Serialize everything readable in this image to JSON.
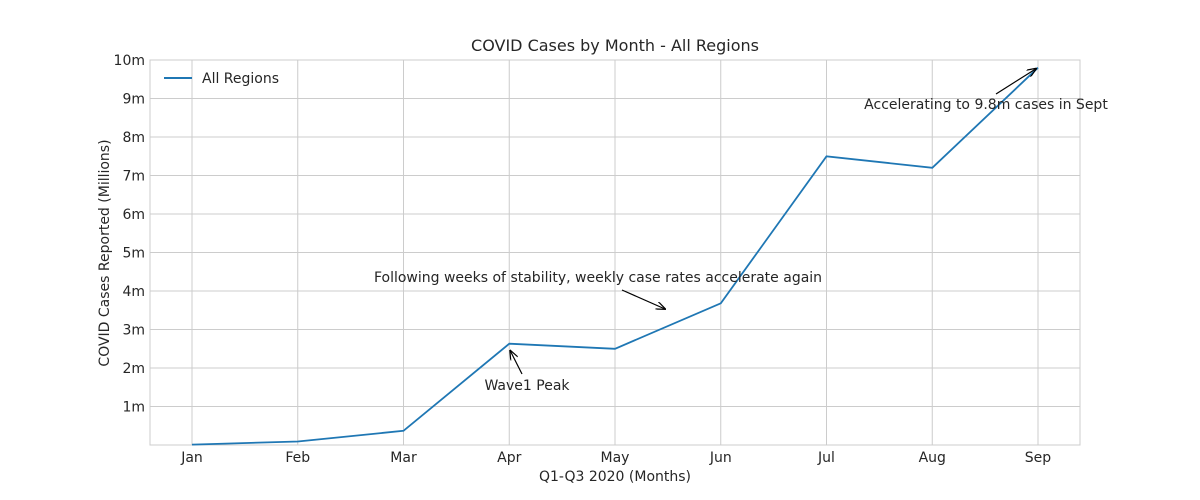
{
  "chart_data": {
    "type": "line",
    "title": "COVID Cases by Month - All Regions",
    "xlabel": "Q1-Q3 2020 (Months)",
    "ylabel": "COVID Cases Reported (Millions)",
    "categories": [
      "Jan",
      "Feb",
      "Mar",
      "Apr",
      "May",
      "Jun",
      "Jul",
      "Aug",
      "Sep"
    ],
    "series": [
      {
        "name": "All Regions",
        "color": "#1f77b4",
        "values": [
          0.01,
          0.09,
          0.37,
          2.63,
          2.5,
          3.68,
          7.5,
          7.2,
          9.8
        ]
      }
    ],
    "ylim": [
      0,
      10
    ],
    "yticks": [
      1,
      2,
      3,
      4,
      5,
      6,
      7,
      8,
      9,
      10
    ],
    "ytick_labels": [
      "1m",
      "2m",
      "3m",
      "4m",
      "5m",
      "6m",
      "7m",
      "8m",
      "9m",
      "10m"
    ],
    "grid": true,
    "legend_position": "top-left",
    "annotations": [
      {
        "id": "wave1",
        "text": "Wave1 Peak",
        "target": [
          "Apr",
          2.63
        ]
      },
      {
        "id": "stability",
        "text": "Following weeks of stability, weekly case rates accelerate again",
        "target": [
          "May-Jun",
          3.55
        ]
      },
      {
        "id": "sept",
        "text": "Accelerating to 9.8m cases in Sept",
        "target": [
          "Sep",
          9.8
        ]
      }
    ]
  }
}
